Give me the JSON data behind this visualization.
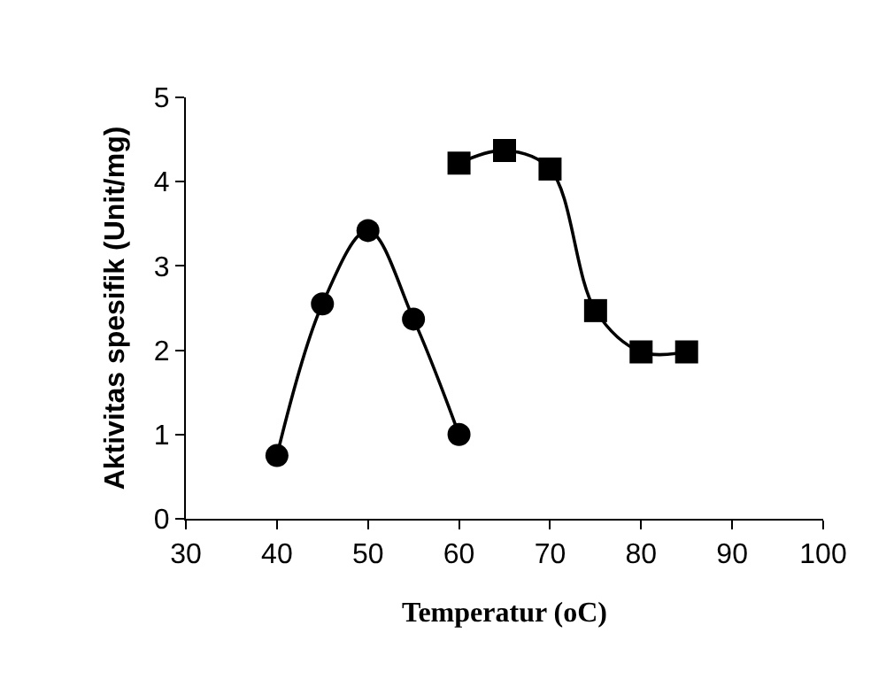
{
  "chart_data": {
    "type": "line",
    "xlabel": "Temperatur (oC)",
    "ylabel": "Aktivitas spesifik (Unit/mg)",
    "xlim": [
      30,
      100
    ],
    "xticks": [
      30,
      40,
      50,
      60,
      70,
      80,
      90,
      100
    ],
    "ylim": [
      0,
      5
    ],
    "yticks": [
      0,
      1,
      2,
      3,
      4,
      5
    ],
    "grid": false,
    "line_style": "solid",
    "series": [
      {
        "color": "#000000",
        "marker": "circle",
        "x": [
          40,
          45,
          50,
          55,
          60
        ],
        "values": [
          0.75,
          2.55,
          3.42,
          2.37,
          1.0
        ]
      },
      {
        "color": "#000000",
        "marker": "square",
        "x": [
          60,
          65,
          70,
          75,
          80,
          85
        ],
        "values": [
          4.22,
          4.37,
          4.15,
          2.47,
          1.98,
          1.98
        ]
      }
    ]
  }
}
